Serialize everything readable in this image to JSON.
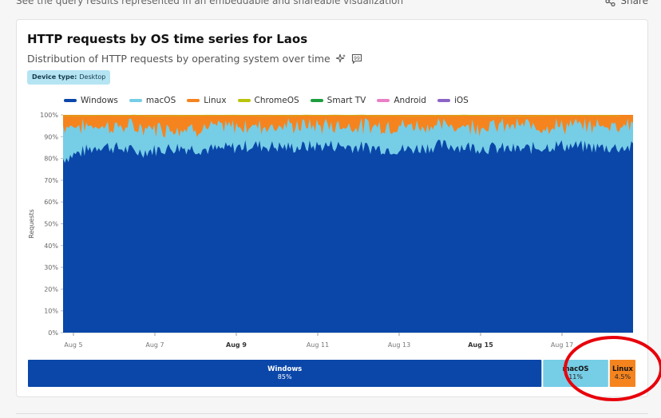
{
  "header": {
    "subtitle": "See the query results represented in an embeddable and shareable visualization",
    "share_label": "Share"
  },
  "card": {
    "title": "HTTP requests by OS time series for Laos",
    "description": "Distribution of HTTP requests by operating system over time",
    "chip_key": "Device type:",
    "chip_value": "Desktop"
  },
  "colors": {
    "Windows": "#0a47a9",
    "macOS": "#76cde6",
    "Linux": "#f5841f",
    "ChromeOS": "#b9c40c",
    "Smart TV": "#1d9e3e",
    "Android": "#ea7fc7",
    "iOS": "#8b64c6"
  },
  "chart_data": {
    "type": "area",
    "stacked": true,
    "title": "HTTP requests by OS time series for Laos",
    "ylabel": "Requests",
    "ylim": [
      0,
      100
    ],
    "yticks": [
      "0%",
      "10%",
      "20%",
      "30%",
      "40%",
      "50%",
      "60%",
      "70%",
      "80%",
      "90%",
      "100%"
    ],
    "xticks": [
      "Aug 5",
      "Aug 7",
      "Aug 9",
      "Aug 11",
      "Aug 13",
      "Aug 15",
      "Aug 17"
    ],
    "xticks_bold": [
      "Aug 9",
      "Aug 15"
    ],
    "legend": [
      "Windows",
      "macOS",
      "Linux",
      "ChromeOS",
      "Smart TV",
      "Android",
      "iOS"
    ],
    "series_approx": [
      {
        "name": "Windows",
        "values": [
          80,
          86,
          83,
          85,
          84,
          86,
          85,
          86,
          85,
          84,
          86,
          85,
          84,
          86,
          85,
          85
        ]
      },
      {
        "name": "macOS",
        "values": [
          15,
          9,
          11,
          9,
          10,
          9,
          10,
          9,
          10,
          11,
          9,
          10,
          11,
          9,
          10,
          11
        ]
      },
      {
        "name": "Linux",
        "values": [
          5,
          5,
          6,
          6,
          6,
          5,
          5,
          5,
          5,
          5,
          5,
          5,
          5,
          5,
          5,
          4
        ]
      }
    ],
    "summary": [
      {
        "name": "Windows",
        "value": 85,
        "label": "85%"
      },
      {
        "name": "macOS",
        "value": 11,
        "label": "11%"
      },
      {
        "name": "Linux",
        "value": 4.5,
        "label": "4.5%"
      }
    ]
  }
}
